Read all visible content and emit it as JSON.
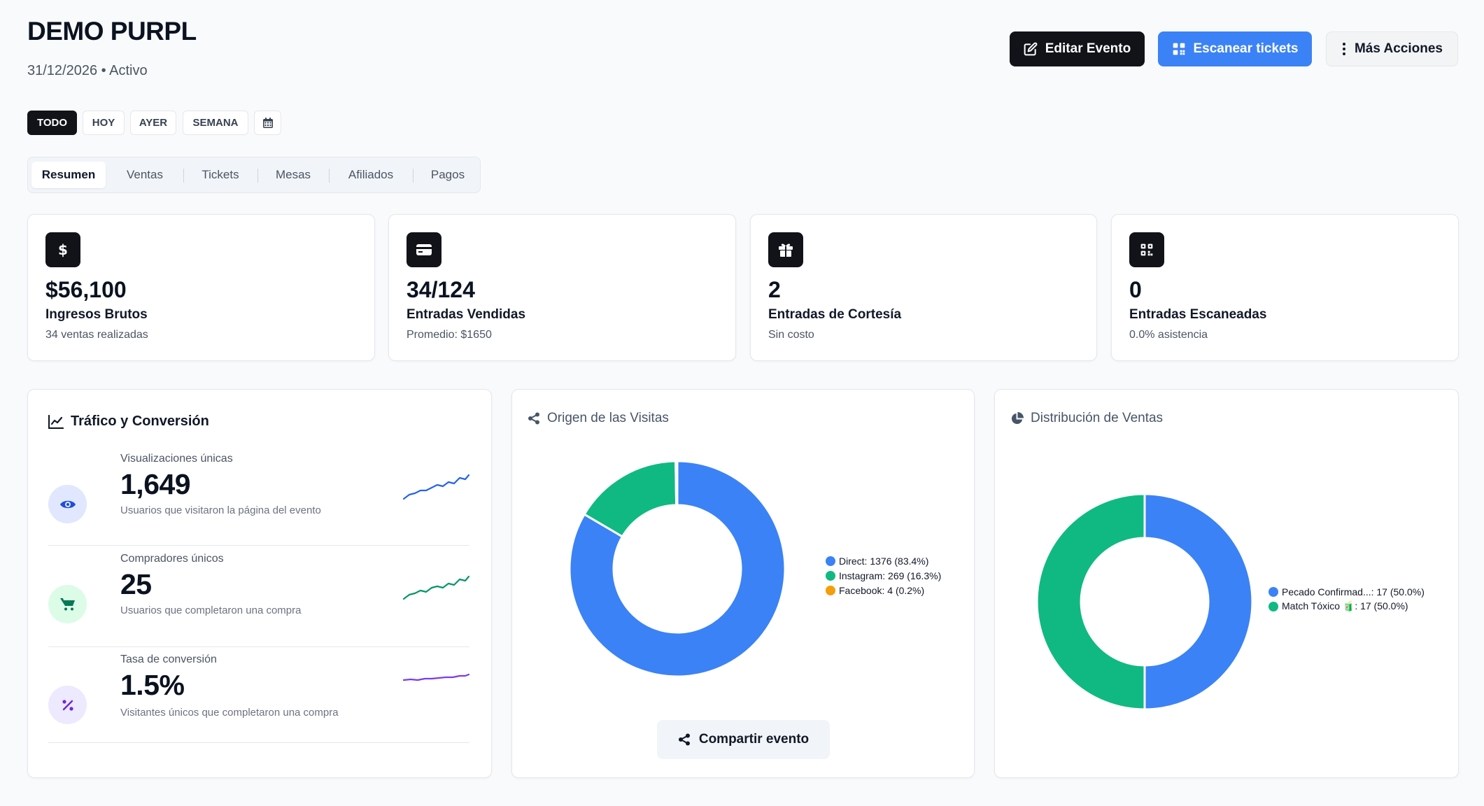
{
  "header": {
    "title": "DEMO PURPL",
    "subtitle": "31/12/2026 • Activo",
    "edit_label": "Editar Evento",
    "scan_label": "Escanear tickets",
    "more_label": "Más Acciones"
  },
  "filters": [
    "TODO",
    "HOY",
    "AYER",
    "SEMANA"
  ],
  "tabs": [
    "Resumen",
    "Ventas",
    "Tickets",
    "Mesas",
    "Afiliados",
    "Pagos"
  ],
  "stats": [
    {
      "icon": "dollar-icon",
      "value": "$56,100",
      "label": "Ingresos Brutos",
      "sub": "34 ventas realizadas"
    },
    {
      "icon": "credit-card-icon",
      "value": "34/124",
      "label": "Entradas Vendidas",
      "sub": "Promedio: $1650"
    },
    {
      "icon": "gift-icon",
      "value": "2",
      "label": "Entradas de Cortesía",
      "sub": "Sin costo"
    },
    {
      "icon": "qr-code-icon",
      "value": "0",
      "label": "Entradas Escaneadas",
      "sub": "0.0% asistencia"
    }
  ],
  "traffic": {
    "title": "Tráfico y Conversión",
    "metrics": [
      {
        "label": "Visualizaciones únicas",
        "value": "1,649",
        "sub": "Usuarios que visitaron la página del evento",
        "color": "#2563eb",
        "bg": "#e0e7ff"
      },
      {
        "label": "Compradores únicos",
        "value": "25",
        "sub": "Usuarios que completaron una compra",
        "color": "#059669",
        "bg": "#dcfce7"
      },
      {
        "label": "Tasa de conversión",
        "value": "1.5%",
        "sub": "Visitantes únicos que completaron una compra",
        "color": "#7c3aed",
        "bg": "#ede9fe"
      }
    ]
  },
  "visits": {
    "title": "Origen de las Visitas",
    "share_label": "Compartir evento",
    "legend": [
      "Direct: 1376 (83.4%)",
      "Instagram: 269 (16.3%)",
      "Facebook: 4 (0.2%)"
    ],
    "chart_data": {
      "type": "pie",
      "categories": [
        "Direct",
        "Instagram",
        "Facebook"
      ],
      "values": [
        1376,
        269,
        4
      ],
      "colors": [
        "#3b82f6",
        "#10b981",
        "#f59e0b"
      ]
    }
  },
  "sales": {
    "title": "Distribución de Ventas",
    "legend": [
      "Pecado Confirmad...: 17 (50.0%)",
      "Match Tóxico 🧃: 17 (50.0%)"
    ],
    "chart_data": {
      "type": "pie",
      "categories": [
        "Pecado Confirmad...",
        "Match Tóxico 🧃"
      ],
      "values": [
        17,
        17
      ],
      "colors": [
        "#3b82f6",
        "#10b981"
      ]
    }
  }
}
